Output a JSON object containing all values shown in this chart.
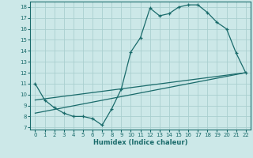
{
  "xlabel": "Humidex (Indice chaleur)",
  "bg_color": "#cce8e8",
  "line_color": "#1a6b6b",
  "grid_color": "#aacfcf",
  "line1_x": [
    0,
    1,
    2,
    3,
    4,
    5,
    6,
    7,
    8,
    9,
    10,
    11,
    12,
    13,
    14,
    15,
    16,
    17,
    18,
    19,
    20,
    21,
    22
  ],
  "line1_y": [
    11,
    9.5,
    8.8,
    8.3,
    8.0,
    8.0,
    7.8,
    7.2,
    8.7,
    10.5,
    13.9,
    15.2,
    17.9,
    17.2,
    17.4,
    18.0,
    18.2,
    18.2,
    17.5,
    16.6,
    16.0,
    13.8,
    12.0
  ],
  "line2_x": [
    0,
    22
  ],
  "line2_y": [
    9.5,
    12.0
  ],
  "line3_x": [
    0,
    22
  ],
  "line3_y": [
    8.3,
    12.0
  ],
  "xlim": [
    -0.5,
    22.5
  ],
  "ylim": [
    6.8,
    18.5
  ],
  "yticks": [
    7,
    8,
    9,
    10,
    11,
    12,
    13,
    14,
    15,
    16,
    17,
    18
  ],
  "xticks": [
    0,
    1,
    2,
    3,
    4,
    5,
    6,
    7,
    8,
    9,
    10,
    11,
    12,
    13,
    14,
    15,
    16,
    17,
    18,
    19,
    20,
    21,
    22
  ]
}
